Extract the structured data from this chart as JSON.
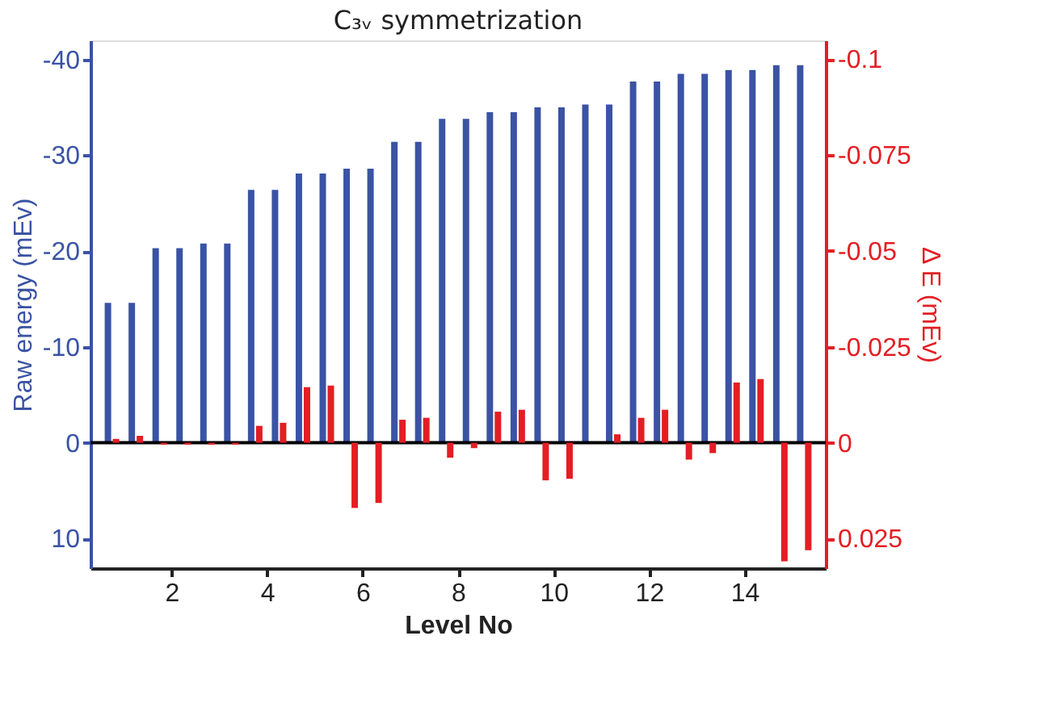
{
  "chart_data": {
    "type": "bar",
    "title": "C₃ᵥ symmetrization",
    "xlabel": "Level No",
    "ylabel": "Raw energy  (mEv)",
    "y2label": "Δ E (mEv)",
    "x": [
      0.75,
      1.25,
      1.75,
      2.25,
      2.75,
      3.25,
      3.75,
      4.25,
      4.75,
      5.25,
      5.75,
      6.25,
      6.75,
      7.25,
      7.75,
      8.25,
      8.75,
      9.25,
      9.75,
      10.25,
      10.75,
      11.25,
      11.75,
      12.25,
      12.75,
      13.25,
      13.75,
      14.25,
      14.75,
      15.25
    ],
    "series": [
      {
        "color": "#3a53a4",
        "axis": "y",
        "values": [
          -14.6,
          -14.6,
          -20.3,
          -20.3,
          -20.8,
          -20.8,
          -26.4,
          -26.4,
          -28.1,
          -28.1,
          -28.6,
          -28.6,
          -31.4,
          -31.4,
          -33.8,
          -33.8,
          -34.5,
          -34.5,
          -35.0,
          -35.0,
          -35.3,
          -35.3,
          -37.7,
          -37.7,
          -38.5,
          -38.5,
          -38.9,
          -38.9,
          -39.4,
          -39.4
        ]
      },
      {
        "color": "#e31e24",
        "axis": "y2",
        "values": [
          -0.001,
          -0.0018,
          0.0005,
          0.0005,
          0.0005,
          0.0005,
          -0.0044,
          -0.0052,
          -0.0145,
          -0.0149,
          0.017,
          0.0157,
          -0.006,
          -0.0065,
          0.0039,
          0.0014,
          -0.0081,
          -0.0086,
          0.0098,
          0.0094,
          0,
          -0.0022,
          -0.0065,
          -0.0086,
          0.0044,
          0.0027,
          -0.0157,
          -0.0166,
          0.0309,
          0.028
        ]
      }
    ],
    "xlim": [
      0.3,
      15.7
    ],
    "xticks": [
      2,
      4,
      6,
      8,
      10,
      12,
      14
    ],
    "ylim": [
      13.1,
      -42
    ],
    "yticks": [
      10,
      0,
      -10,
      -20,
      -30,
      -40
    ],
    "y2lim": [
      0.0327,
      -0.1049
    ],
    "y2ticks": [
      0.025,
      0,
      -0.025,
      -0.05,
      -0.075,
      -0.1
    ],
    "ref_lines": [
      {
        "axis": "y",
        "value": 0,
        "color": "#000000"
      }
    ],
    "grid": false
  }
}
